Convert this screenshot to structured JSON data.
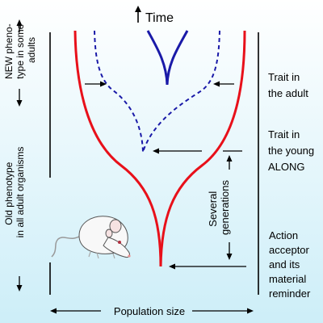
{
  "title": "Time",
  "colors": {
    "background_top": "#ffffff",
    "background_bottom": "#cdeef8",
    "old_trait_line": "#e8101a",
    "new_trait_line": "#1a1aa8",
    "arrows": "#000000"
  },
  "left_labels": {
    "new_phenotype": [
      "NEW pheno-",
      "type in some",
      "adults"
    ],
    "old_phenotype": [
      "Old phenotype",
      "in all adult organisms"
    ]
  },
  "middle_labels": {
    "several_generations": [
      "Several",
      "generations"
    ]
  },
  "right_labels": {
    "trait_adult": [
      "Trait in",
      "the adult"
    ],
    "trait_young": [
      "Trait in",
      "the young",
      "ALONG"
    ],
    "action": [
      "Action",
      "acceptor",
      "and its",
      "material",
      "reminder"
    ]
  },
  "bottom_label": "Population size",
  "illustration": "white-mouse"
}
